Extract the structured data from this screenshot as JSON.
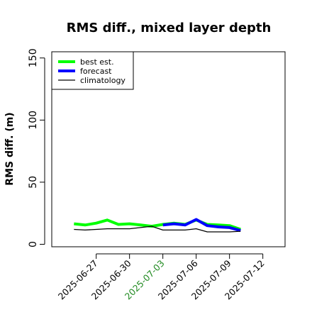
{
  "chart_data": {
    "type": "line",
    "title": "RMS diff., mixed layer depth",
    "ylabel": "RMS diff. (m)",
    "xlabel": "",
    "ylim": [
      -2,
      155
    ],
    "xlim": [
      "2025-06-23",
      "2025-07-14"
    ],
    "yticks": [
      "0",
      "50",
      "100",
      "150"
    ],
    "xticks": [
      {
        "label": "2025-06-27",
        "date": "2025-06-27",
        "color": "#000000"
      },
      {
        "label": "2025-06-30",
        "date": "2025-06-30",
        "color": "#000000"
      },
      {
        "label": "2025-07-03",
        "date": "2025-07-03",
        "color": "#228B22"
      },
      {
        "label": "2025-07-06",
        "date": "2025-07-06",
        "color": "#000000"
      },
      {
        "label": "2025-07-09",
        "date": "2025-07-09",
        "color": "#000000"
      },
      {
        "label": "2025-07-12",
        "date": "2025-07-12",
        "color": "#000000"
      }
    ],
    "legend_position": "top-left",
    "grid": false,
    "series": [
      {
        "name": "best est.",
        "color": "#00ff00",
        "width": 4,
        "x": [
          "2025-06-25",
          "2025-06-26",
          "2025-06-27",
          "2025-06-28",
          "2025-06-29",
          "2025-06-30",
          "2025-07-01",
          "2025-07-02",
          "2025-07-03",
          "2025-07-04",
          "2025-07-05",
          "2025-07-06",
          "2025-07-07",
          "2025-07-08",
          "2025-07-09",
          "2025-07-10"
        ],
        "values": [
          16.5,
          15.5,
          17,
          19.5,
          16,
          16.5,
          15.5,
          14.5,
          16,
          17,
          16,
          19.5,
          16,
          15.5,
          15,
          12
        ]
      },
      {
        "name": "forecast",
        "color": "#0000ff",
        "width": 4,
        "x": [
          "2025-07-03",
          "2025-07-04",
          "2025-07-05",
          "2025-07-06",
          "2025-07-07",
          "2025-07-08",
          "2025-07-09",
          "2025-07-10"
        ],
        "values": [
          15.5,
          16.5,
          15.5,
          20,
          15,
          14,
          13.5,
          11
        ]
      },
      {
        "name": "climatology",
        "color": "#000000",
        "width": 1.3,
        "x": [
          "2025-06-25",
          "2025-06-26",
          "2025-06-27",
          "2025-06-28",
          "2025-06-29",
          "2025-06-30",
          "2025-07-01",
          "2025-07-02",
          "2025-07-03",
          "2025-07-04",
          "2025-07-05",
          "2025-07-06",
          "2025-07-07",
          "2025-07-08",
          "2025-07-09",
          "2025-07-10"
        ],
        "values": [
          12,
          11.5,
          12,
          12.5,
          12.5,
          12.5,
          13.5,
          14.5,
          11.5,
          11.5,
          11.5,
          12.5,
          10,
          10,
          10,
          10.5
        ]
      }
    ]
  }
}
